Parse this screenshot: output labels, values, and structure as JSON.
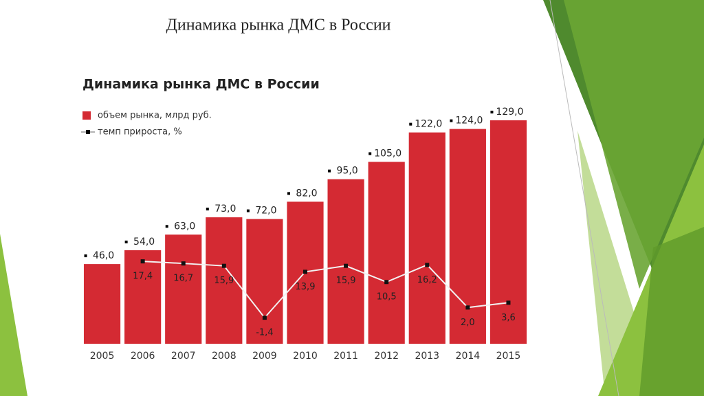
{
  "slide_title": "Динамика рынка ДМС в России",
  "chart_data": {
    "type": "bar",
    "title": "Динамика рынка ДМС в России",
    "categories": [
      "2005",
      "2006",
      "2007",
      "2008",
      "2009",
      "2010",
      "2011",
      "2012",
      "2013",
      "2014",
      "2015"
    ],
    "series": [
      {
        "name": "объем рынка, млрд руб.",
        "type": "bar",
        "color": "#d42a33",
        "values": [
          46,
          54,
          63,
          73,
          72,
          82,
          95,
          105,
          122,
          124,
          129
        ],
        "value_labels": [
          "46,0",
          "54,0",
          "63,0",
          "73,0",
          "72,0",
          "82,0",
          "95,0",
          "105,0",
          "122,0",
          "124,0",
          "129,0"
        ]
      },
      {
        "name": "темп прироста, %",
        "type": "line",
        "color": "#f2f2f2",
        "values": [
          null,
          17.4,
          16.7,
          15.9,
          -1.4,
          13.9,
          15.9,
          10.5,
          16.2,
          2.0,
          3.6
        ],
        "value_labels": [
          null,
          "17,4",
          "16,7",
          "15,9",
          "-1,4",
          "13,9",
          "15,9",
          "10,5",
          "16,2",
          "2,0",
          "3,6"
        ]
      }
    ]
  }
}
